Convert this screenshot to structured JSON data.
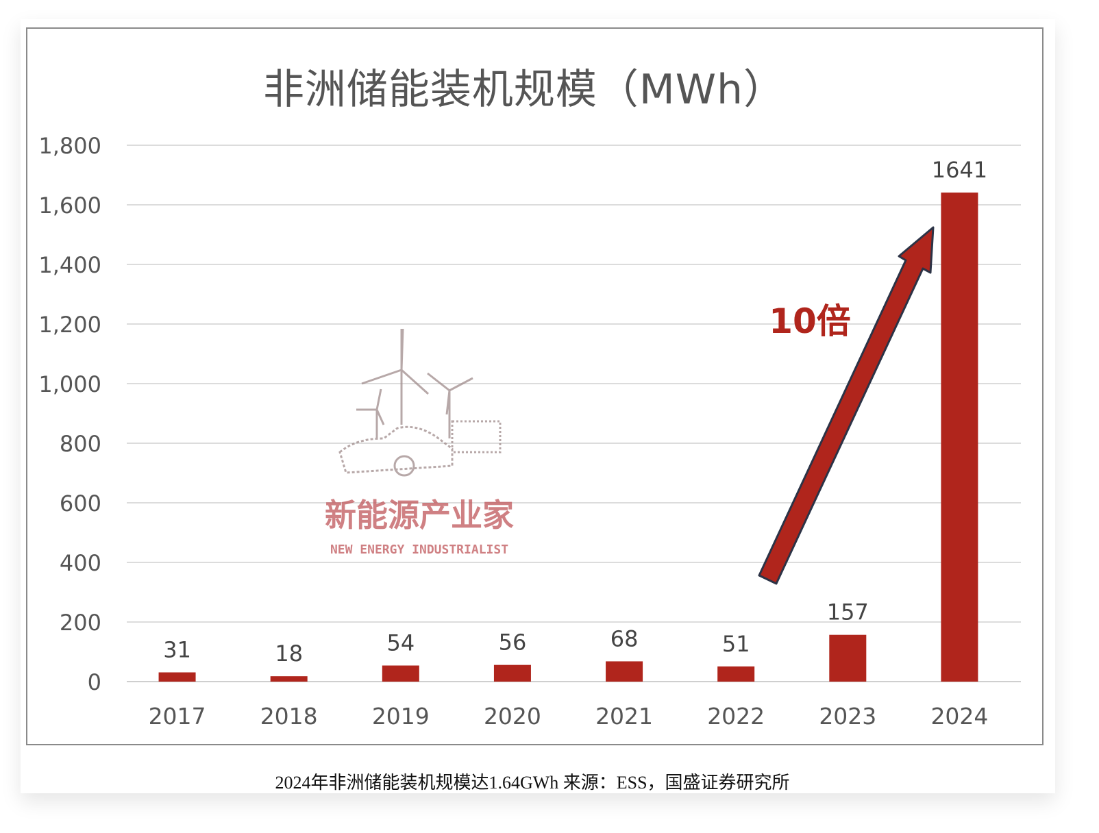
{
  "chart_data": {
    "type": "bar",
    "title": "非洲储能装机规模（MWh）",
    "categories": [
      "2017",
      "2018",
      "2019",
      "2020",
      "2021",
      "2022",
      "2023",
      "2024"
    ],
    "values": [
      31,
      18,
      54,
      56,
      68,
      51,
      157,
      1641
    ],
    "ylim": [
      0,
      1800
    ],
    "yticks": [
      0,
      200,
      400,
      600,
      800,
      1000,
      1200,
      1400,
      1600,
      1800
    ],
    "ytick_labels": [
      "0",
      "200",
      "400",
      "600",
      "800",
      "1,000",
      "1,200",
      "1,400",
      "1,600",
      "1,800"
    ],
    "grid": true,
    "bar_color": "#b0251c",
    "annotation": "10倍",
    "xlabel": "",
    "ylabel": ""
  },
  "watermark": {
    "cn": "新能源产业家",
    "en": "NEW ENERGY INDUSTRIALIST"
  },
  "caption": "2024年非洲储能装机规模达1.64GWh 来源：ESS，国盛证券研究所"
}
